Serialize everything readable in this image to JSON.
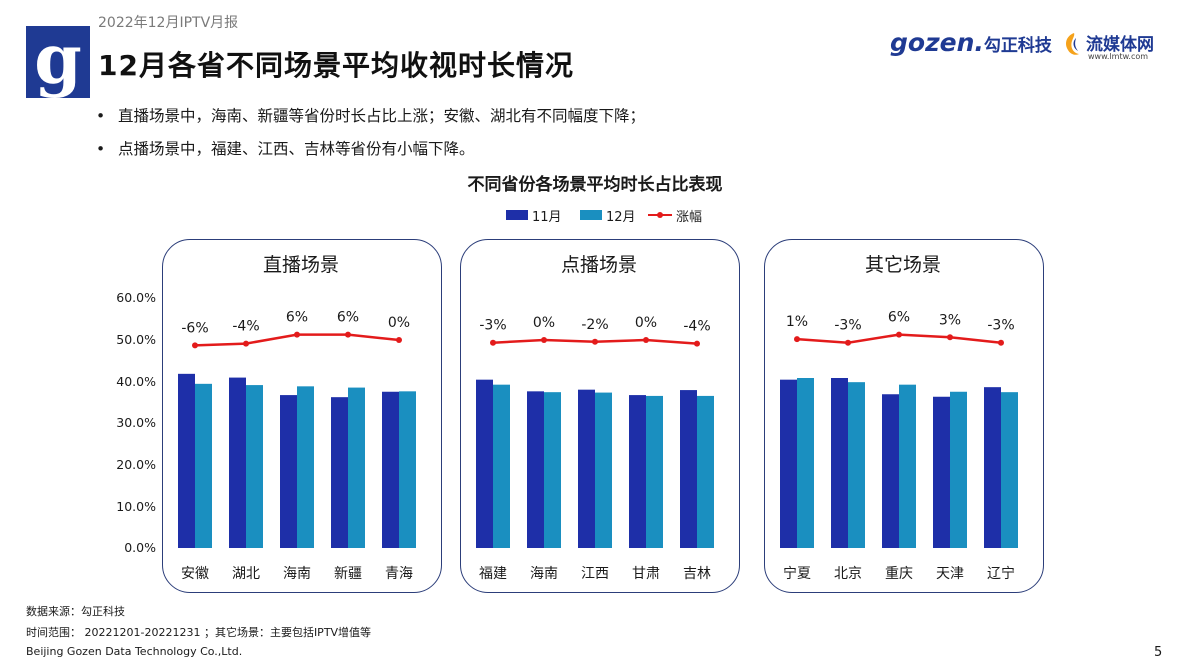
{
  "header": {
    "report_label": "2022年12月IPTV月报",
    "title": "12月各省不同场景平均收视时长情况",
    "logo_letter": "g",
    "gozen_brand": "gozen.",
    "gozen_cn": "勾正科技",
    "lmtw_cn": "流媒体网",
    "lmtw_url": "www.lmtw.com"
  },
  "bullets": [
    "直播场景中，海南、新疆等省份时长占比上涨；安徽、湖北有不同幅度下降；",
    "点播场景中，福建、江西、吉林等省份有小幅下降。"
  ],
  "bullet_marker": "•",
  "colors": {
    "nov": "#1e2fa8",
    "dec": "#1a8fc0",
    "change": "#e31b1b",
    "frame": "#2c3e7a"
  },
  "chart_data": {
    "type": "bar",
    "title": "不同省份各场景平均时长占比表现",
    "legend": [
      "11月",
      "12月",
      "涨幅"
    ],
    "legend_placement": "top-center",
    "y_ticks": [
      "60.0%",
      "50.0%",
      "40.0%",
      "30.0%",
      "20.0%",
      "10.0%",
      "0.0%"
    ],
    "ylim": [
      0,
      60
    ],
    "grid": false,
    "panels": [
      {
        "title": "直播场景",
        "categories": [
          "安徽",
          "湖北",
          "海南",
          "新疆",
          "青海"
        ],
        "series": [
          {
            "name": "11月",
            "values": [
              41.8,
              40.9,
              36.7,
              36.2,
              37.5
            ]
          },
          {
            "name": "12月",
            "values": [
              39.4,
              39.1,
              38.8,
              38.5,
              37.6
            ]
          }
        ],
        "change_labels": [
          "-6%",
          "-4%",
          "6%",
          "6%",
          "0%"
        ],
        "change_values": [
          -6,
          -4,
          6,
          6,
          0
        ]
      },
      {
        "title": "点播场景",
        "categories": [
          "福建",
          "海南",
          "江西",
          "甘肃",
          "吉林"
        ],
        "series": [
          {
            "name": "11月",
            "values": [
              40.4,
              37.6,
              38.0,
              36.7,
              37.9
            ]
          },
          {
            "name": "12月",
            "values": [
              39.2,
              37.4,
              37.3,
              36.5,
              36.5
            ]
          }
        ],
        "change_labels": [
          "-3%",
          "0%",
          "-2%",
          "0%",
          "-4%"
        ],
        "change_values": [
          -3,
          0,
          -2,
          0,
          -4
        ]
      },
      {
        "title": "其它场景",
        "categories": [
          "宁夏",
          "北京",
          "重庆",
          "天津",
          "辽宁"
        ],
        "series": [
          {
            "name": "11月",
            "values": [
              40.4,
              40.8,
              36.9,
              36.3,
              38.6
            ]
          },
          {
            "name": "12月",
            "values": [
              40.8,
              39.8,
              39.2,
              37.5,
              37.4
            ]
          }
        ],
        "change_labels": [
          "1%",
          "-3%",
          "6%",
          "3%",
          "-3%"
        ],
        "change_values": [
          1,
          -3,
          6,
          3,
          -3
        ]
      }
    ]
  },
  "footer": {
    "source": "数据来源：勾正科技",
    "range": "时间范围： 20221201-20221231 ；其它场景：主要包括IPTV增值等",
    "company": "Beijing Gozen Data Technology Co.,Ltd.",
    "page_number": "5"
  }
}
